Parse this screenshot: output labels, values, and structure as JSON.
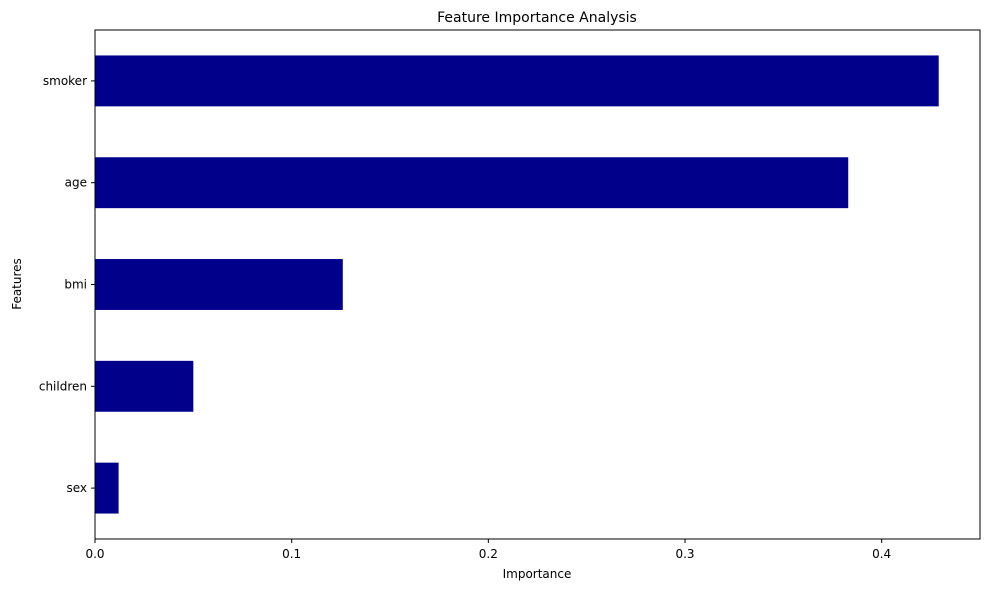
{
  "chart_data": {
    "type": "bar",
    "orientation": "horizontal",
    "title": "Feature Importance Analysis",
    "xlabel": "Importance",
    "ylabel": "Features",
    "categories": [
      "smoker",
      "age",
      "bmi",
      "children",
      "sex"
    ],
    "values": [
      0.429,
      0.383,
      0.126,
      0.05,
      0.012
    ],
    "xlim": [
      0,
      0.45
    ],
    "xticks": [
      0.0,
      0.1,
      0.2,
      0.3,
      0.4
    ],
    "xtick_labels": [
      "0.0",
      "0.1",
      "0.2",
      "0.3",
      "0.4"
    ],
    "bar_color": "#00008b",
    "grid": false
  }
}
